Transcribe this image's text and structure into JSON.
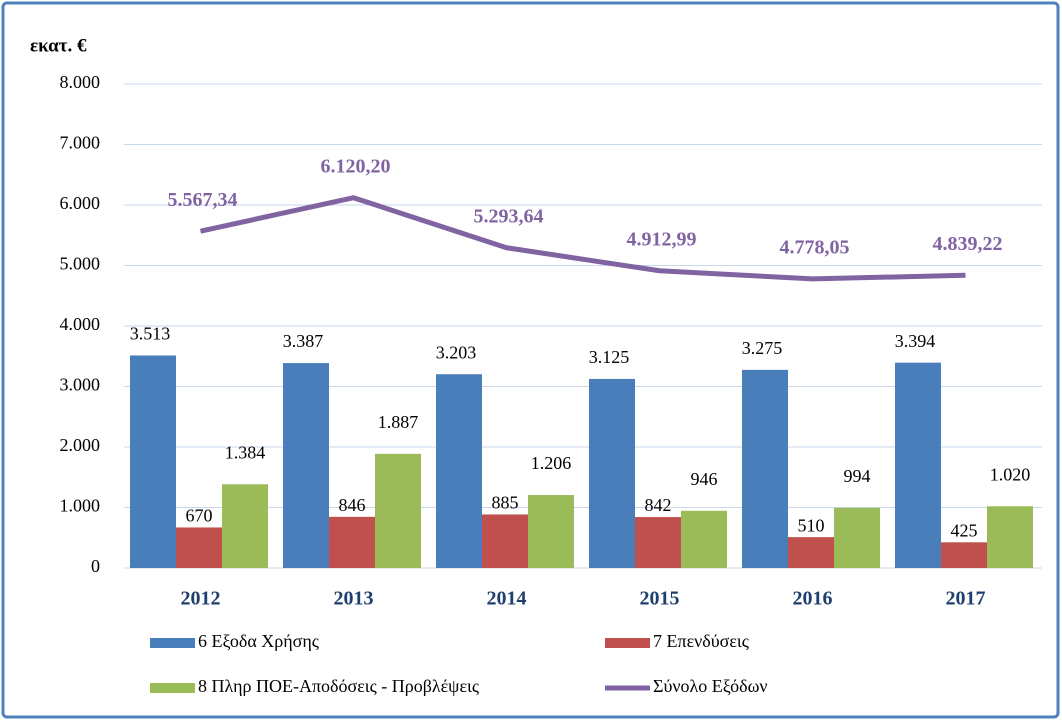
{
  "chart_data": {
    "type": "bar",
    "y_axis_label": "εκατ. €",
    "categories": [
      "2012",
      "2013",
      "2014",
      "2015",
      "2016",
      "2017"
    ],
    "series": [
      {
        "name": "6 Εξοδα Χρήσης",
        "color": "#4a7ebb",
        "type": "bar",
        "values": [
          3513,
          3387,
          3203,
          3125,
          3275,
          3394
        ],
        "value_labels": [
          "3.513",
          "3.387",
          "3.203",
          "3.125",
          "3.275",
          "3.394"
        ]
      },
      {
        "name": "7  Επενδύσεις",
        "color": "#c0504d",
        "type": "bar",
        "values": [
          670,
          846,
          885,
          842,
          510,
          425
        ]
      },
      {
        "name": "8 Πληρ ΠΟΕ-Αποδόσεις - Προβλέψεις",
        "color": "#9bbb59",
        "type": "bar",
        "values": [
          1384,
          1887,
          1206,
          946,
          994,
          1020
        ],
        "value_labels": [
          "1.384",
          "1.887",
          "1.206",
          "946",
          "994",
          "1.020"
        ]
      },
      {
        "name": "Σύνολο Εξόδων",
        "color": "#8064a2",
        "type": "line",
        "values": [
          5567.34,
          6120.2,
          5293.64,
          4912.99,
          4778.05,
          4839.22
        ],
        "value_labels": [
          "5.567,34",
          "6.120,20",
          "5.293,64",
          "4.912,99",
          "4.778,05",
          "4.839,22"
        ]
      }
    ],
    "ylim": [
      0,
      8000
    ],
    "yticks": [
      0,
      {
        "value": 1000,
        "label": "1.000"
      },
      {
        "value": 2000,
        "label": "2.000"
      },
      {
        "value": 3000,
        "label": "3.000"
      },
      {
        "value": 4000,
        "label": "4.000"
      },
      {
        "value": 5000,
        "label": "5.000"
      },
      {
        "value": 6000,
        "label": "6.000"
      },
      {
        "value": 7000,
        "label": "7.000"
      },
      {
        "value": 8000,
        "label": "8.000"
      }
    ],
    "grid": true
  }
}
